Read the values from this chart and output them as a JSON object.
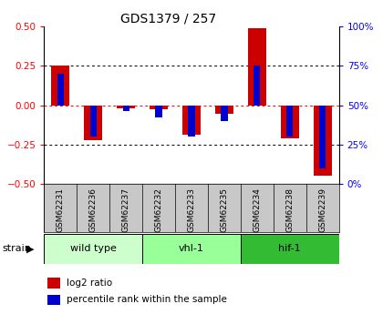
{
  "title": "GDS1379 / 257",
  "samples": [
    "GSM62231",
    "GSM62236",
    "GSM62237",
    "GSM62232",
    "GSM62233",
    "GSM62235",
    "GSM62234",
    "GSM62238",
    "GSM62239"
  ],
  "log2_ratio": [
    0.25,
    -0.22,
    -0.02,
    -0.025,
    -0.19,
    -0.055,
    0.49,
    -0.21,
    -0.45
  ],
  "pct_rank_scaled": [
    0.2,
    -0.2,
    -0.04,
    -0.08,
    -0.2,
    -0.1,
    0.25,
    -0.2,
    -0.4
  ],
  "ylim": [
    -0.5,
    0.5
  ],
  "y2lim": [
    0,
    100
  ],
  "yticks": [
    -0.5,
    -0.25,
    0,
    0.25,
    0.5
  ],
  "y2ticks": [
    0,
    25,
    50,
    75,
    100
  ],
  "bar_color_log2": "#cc0000",
  "bar_color_pct": "#0000cc",
  "groups": [
    {
      "label": "wild type",
      "start": 0,
      "end": 3,
      "color": "#ccffcc"
    },
    {
      "label": "vhl-1",
      "start": 3,
      "end": 6,
      "color": "#99ff99"
    },
    {
      "label": "hif-1",
      "start": 6,
      "end": 9,
      "color": "#33bb33"
    }
  ],
  "strain_label": "strain",
  "legend_log2": "log2 ratio",
  "legend_pct": "percentile rank within the sample",
  "sample_box_color": "#c8c8c8",
  "plot_bg": "#ffffff"
}
